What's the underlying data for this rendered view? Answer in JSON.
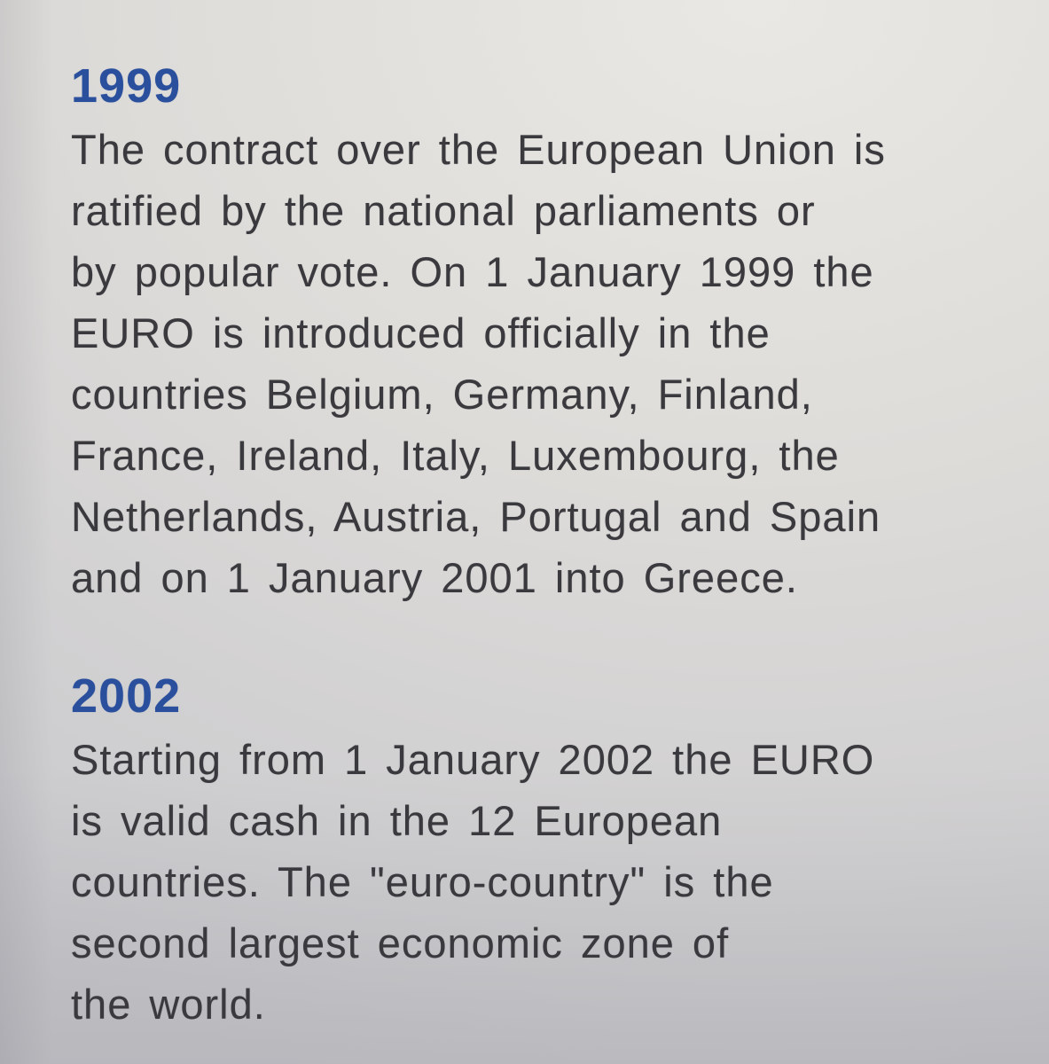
{
  "document": {
    "type": "scanned-book-page",
    "topic": "Euro introduction timeline",
    "colors": {
      "heading": "#2a4f9c",
      "body_text": "#3a393d",
      "paper_light": "#eae8e4",
      "paper_dark": "#c7c7cb"
    },
    "sections": [
      {
        "year": "1999",
        "lines": [
          "The contract over the European Union is",
          "ratified by the national parliaments or",
          "by popular vote. On 1 January 1999 the",
          "EURO is introduced officially in the",
          "countries Belgium, Germany, Finland,",
          "France, Ireland, Italy, Luxembourg, the",
          "Netherlands, Austria, Portugal and Spain",
          "and on 1 January 2001 into Greece."
        ]
      },
      {
        "year": "2002",
        "lines": [
          "Starting from 1 January 2002 the EURO",
          "is valid cash in the 12 European",
          "countries. The \"euro-country\" is the",
          "second largest economic zone of",
          "the world."
        ]
      }
    ]
  }
}
